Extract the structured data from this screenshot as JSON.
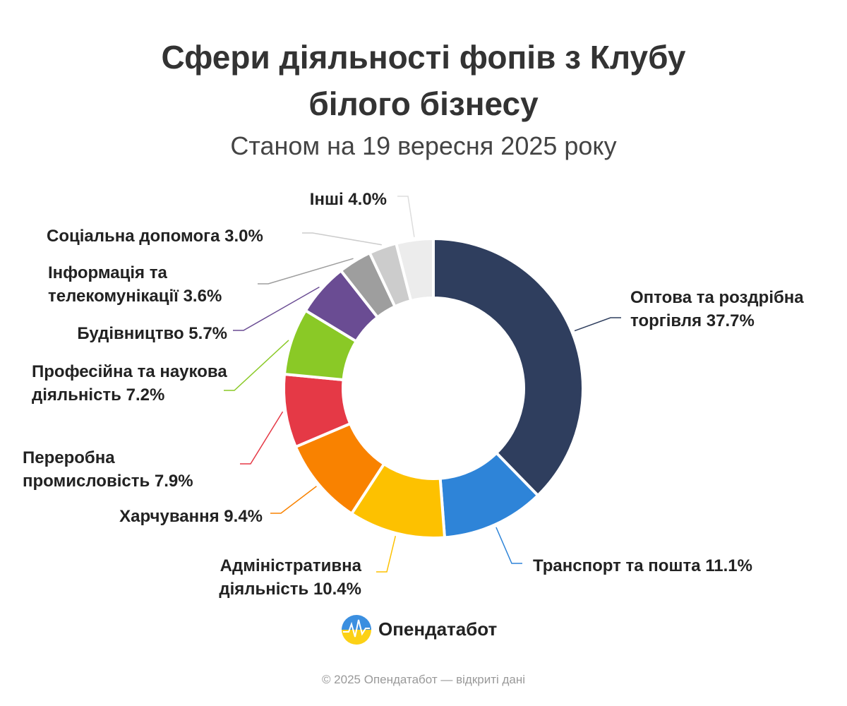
{
  "chart_data": {
    "type": "donut",
    "title": "Сфери діяльності фопів з Клубу білого бізнесу",
    "subtitle": "Станом на 19 вересня 2025 року",
    "categories": [
      "Оптова та роздрібна торгівля",
      "Транспорт та пошта",
      "Адміністративна діяльність",
      "Харчування",
      "Переробна промисловість",
      "Професійна та наукова діяльність",
      "Будівництво",
      "Інформація та телекомунікації",
      "Соціальна допомога",
      "Інші"
    ],
    "values": [
      37.7,
      11.1,
      10.4,
      9.4,
      7.9,
      7.2,
      5.7,
      3.6,
      3.0,
      4.0
    ],
    "value_labels": [
      "37.7%",
      "11.1%",
      "10.4%",
      "9.4%",
      "7.9%",
      "7.2%",
      "5.7%",
      "3.6%",
      "3.0%",
      "4.0%"
    ],
    "colors": [
      "#2f3e5e",
      "#2e84d8",
      "#fdc100",
      "#f98200",
      "#e53946",
      "#8ac926",
      "#6a4c93",
      "#9e9e9e",
      "#cccccc",
      "#ececec"
    ]
  },
  "brand": "Опендатабот",
  "footer": "© 2025 Опендатабот — відкриті дані"
}
